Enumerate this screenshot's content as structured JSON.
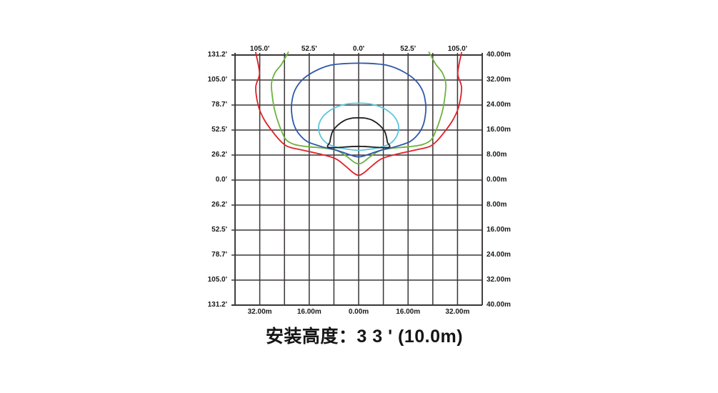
{
  "caption": {
    "text": "安装高度：3 3 ' (10.0m)"
  },
  "chart_data": {
    "type": "isolux_contour_diagram",
    "title": "",
    "grid": {
      "rows": 10,
      "cols": 10,
      "grid_on": true,
      "line_color": "#3a3637"
    },
    "x_axis_range_m": [
      -40,
      40
    ],
    "y_axis_range_m": [
      -40,
      40
    ],
    "axes": {
      "left": {
        "labels": [
          "131.2'",
          "105.0'",
          "78.7'",
          "52.5'",
          "26.2'",
          "0.0'",
          "26.2'",
          "52.5'",
          "78.7'",
          "105.0'",
          "131.2'"
        ]
      },
      "right": {
        "labels": [
          "40.00m",
          "32.00m",
          "24.00m",
          "16.00m",
          "8.00m",
          "0.00m",
          "8.00m",
          "16.00m",
          "24.00m",
          "32.00m",
          "40.00m"
        ]
      },
      "top": {
        "labels": [
          "105.0'",
          "52.5'",
          "0.0'",
          "52.5'",
          "105.0'"
        ]
      },
      "bottom": {
        "labels": [
          "32.00m",
          "16.00m",
          "0.00m",
          "16.00m",
          "32.00m"
        ]
      }
    },
    "contours": [
      {
        "name": "contour-red-outer",
        "color": "#e02127",
        "closed": false,
        "points_m": [
          [
            -33.3,
            40.8
          ],
          [
            -32.1,
            34.1
          ],
          [
            -33.3,
            29.7
          ],
          [
            -32.4,
            23.5
          ],
          [
            -30.5,
            19.2
          ],
          [
            -27.7,
            15.3
          ],
          [
            -25.4,
            12.6
          ],
          [
            -22.9,
            10.7
          ],
          [
            -18.3,
            9.6
          ],
          [
            -12.0,
            8.2
          ],
          [
            -7.4,
            6.8
          ],
          [
            -4.4,
            4.6
          ],
          [
            -1.8,
            2.4
          ],
          [
            0,
            1.5
          ],
          [
            1.8,
            2.4
          ],
          [
            4.4,
            4.6
          ],
          [
            7.4,
            6.8
          ],
          [
            12.0,
            8.2
          ],
          [
            18.3,
            9.6
          ],
          [
            22.9,
            10.7
          ],
          [
            25.4,
            12.6
          ],
          [
            27.7,
            15.3
          ],
          [
            30.5,
            19.2
          ],
          [
            32.4,
            23.5
          ],
          [
            33.3,
            29.7
          ],
          [
            32.1,
            34.1
          ],
          [
            33.3,
            40.8
          ]
        ]
      },
      {
        "name": "contour-green",
        "color": "#6cb33f",
        "closed": false,
        "points_m": [
          [
            -22.7,
            41.0
          ],
          [
            -25.0,
            37.0
          ],
          [
            -27.1,
            34.3
          ],
          [
            -28.2,
            30.9
          ],
          [
            -28.0,
            27.4
          ],
          [
            -27.3,
            22.9
          ],
          [
            -26.1,
            18.7
          ],
          [
            -24.7,
            15.1
          ],
          [
            -23.4,
            12.8
          ],
          [
            -20.8,
            11.4
          ],
          [
            -16.6,
            10.7
          ],
          [
            -10.9,
            10.2
          ],
          [
            -6.9,
            9.4
          ],
          [
            -3.9,
            7.6
          ],
          [
            -1.6,
            5.8
          ],
          [
            0,
            5.2
          ],
          [
            1.6,
            5.8
          ],
          [
            3.9,
            7.6
          ],
          [
            6.9,
            9.4
          ],
          [
            10.9,
            10.2
          ],
          [
            16.6,
            10.7
          ],
          [
            20.8,
            11.4
          ],
          [
            23.4,
            12.8
          ],
          [
            24.7,
            15.1
          ],
          [
            26.1,
            18.7
          ],
          [
            27.3,
            22.9
          ],
          [
            28.0,
            27.4
          ],
          [
            28.2,
            30.9
          ],
          [
            27.1,
            34.3
          ],
          [
            25.0,
            37.0
          ],
          [
            22.7,
            41.0
          ]
        ]
      },
      {
        "name": "contour-blue",
        "color": "#2d58a8",
        "closed": true,
        "points_m": [
          [
            0,
            7.4
          ],
          [
            -3.7,
            8.4
          ],
          [
            -7.4,
            9.6
          ],
          [
            -12.0,
            10.7
          ],
          [
            -16.6,
            12.3
          ],
          [
            -19.2,
            14.6
          ],
          [
            -20.8,
            17.4
          ],
          [
            -21.6,
            20.8
          ],
          [
            -21.7,
            24.2
          ],
          [
            -20.8,
            28.3
          ],
          [
            -18.5,
            31.8
          ],
          [
            -14.8,
            34.5
          ],
          [
            -9.7,
            36.6
          ],
          [
            -5.1,
            37.2
          ],
          [
            0,
            37.4
          ],
          [
            5.1,
            37.2
          ],
          [
            9.7,
            36.6
          ],
          [
            14.8,
            34.5
          ],
          [
            18.5,
            31.8
          ],
          [
            20.8,
            28.3
          ],
          [
            21.7,
            24.2
          ],
          [
            21.6,
            20.8
          ],
          [
            20.8,
            17.4
          ],
          [
            19.2,
            14.6
          ],
          [
            16.6,
            12.3
          ],
          [
            12.0,
            10.7
          ],
          [
            7.4,
            9.6
          ],
          [
            3.7,
            8.4
          ]
        ]
      },
      {
        "name": "contour-cyan",
        "color": "#5ec5de",
        "closed": true,
        "points_m": [
          [
            0,
            9.5
          ],
          [
            -3.0,
            9.8
          ],
          [
            -6.7,
            10.4
          ],
          [
            -10.0,
            11.6
          ],
          [
            -12.0,
            13.5
          ],
          [
            -12.9,
            16.0
          ],
          [
            -12.7,
            18.3
          ],
          [
            -11.0,
            20.9
          ],
          [
            -7.8,
            23.1
          ],
          [
            -4.0,
            24.3
          ],
          [
            0,
            24.6
          ],
          [
            4.0,
            24.3
          ],
          [
            7.8,
            23.1
          ],
          [
            11.0,
            20.9
          ],
          [
            12.7,
            18.3
          ],
          [
            12.9,
            16.0
          ],
          [
            12.0,
            13.5
          ],
          [
            10.0,
            11.6
          ],
          [
            6.7,
            10.4
          ],
          [
            3.0,
            9.8
          ]
        ]
      },
      {
        "name": "contour-black-inner",
        "color": "#1d1d1b",
        "closed": true,
        "points_m": [
          [
            -9.4,
            10.4
          ],
          [
            -9.3,
            12.2
          ],
          [
            -8.5,
            15.4
          ],
          [
            -6.8,
            17.5
          ],
          [
            -4.5,
            19.1
          ],
          [
            -2.2,
            19.8
          ],
          [
            0,
            19.9
          ],
          [
            2.2,
            19.8
          ],
          [
            4.5,
            19.1
          ],
          [
            6.8,
            17.5
          ],
          [
            8.5,
            15.4
          ],
          [
            9.3,
            12.2
          ],
          [
            9.4,
            10.4
          ],
          [
            0,
            10.8
          ]
        ]
      }
    ]
  }
}
